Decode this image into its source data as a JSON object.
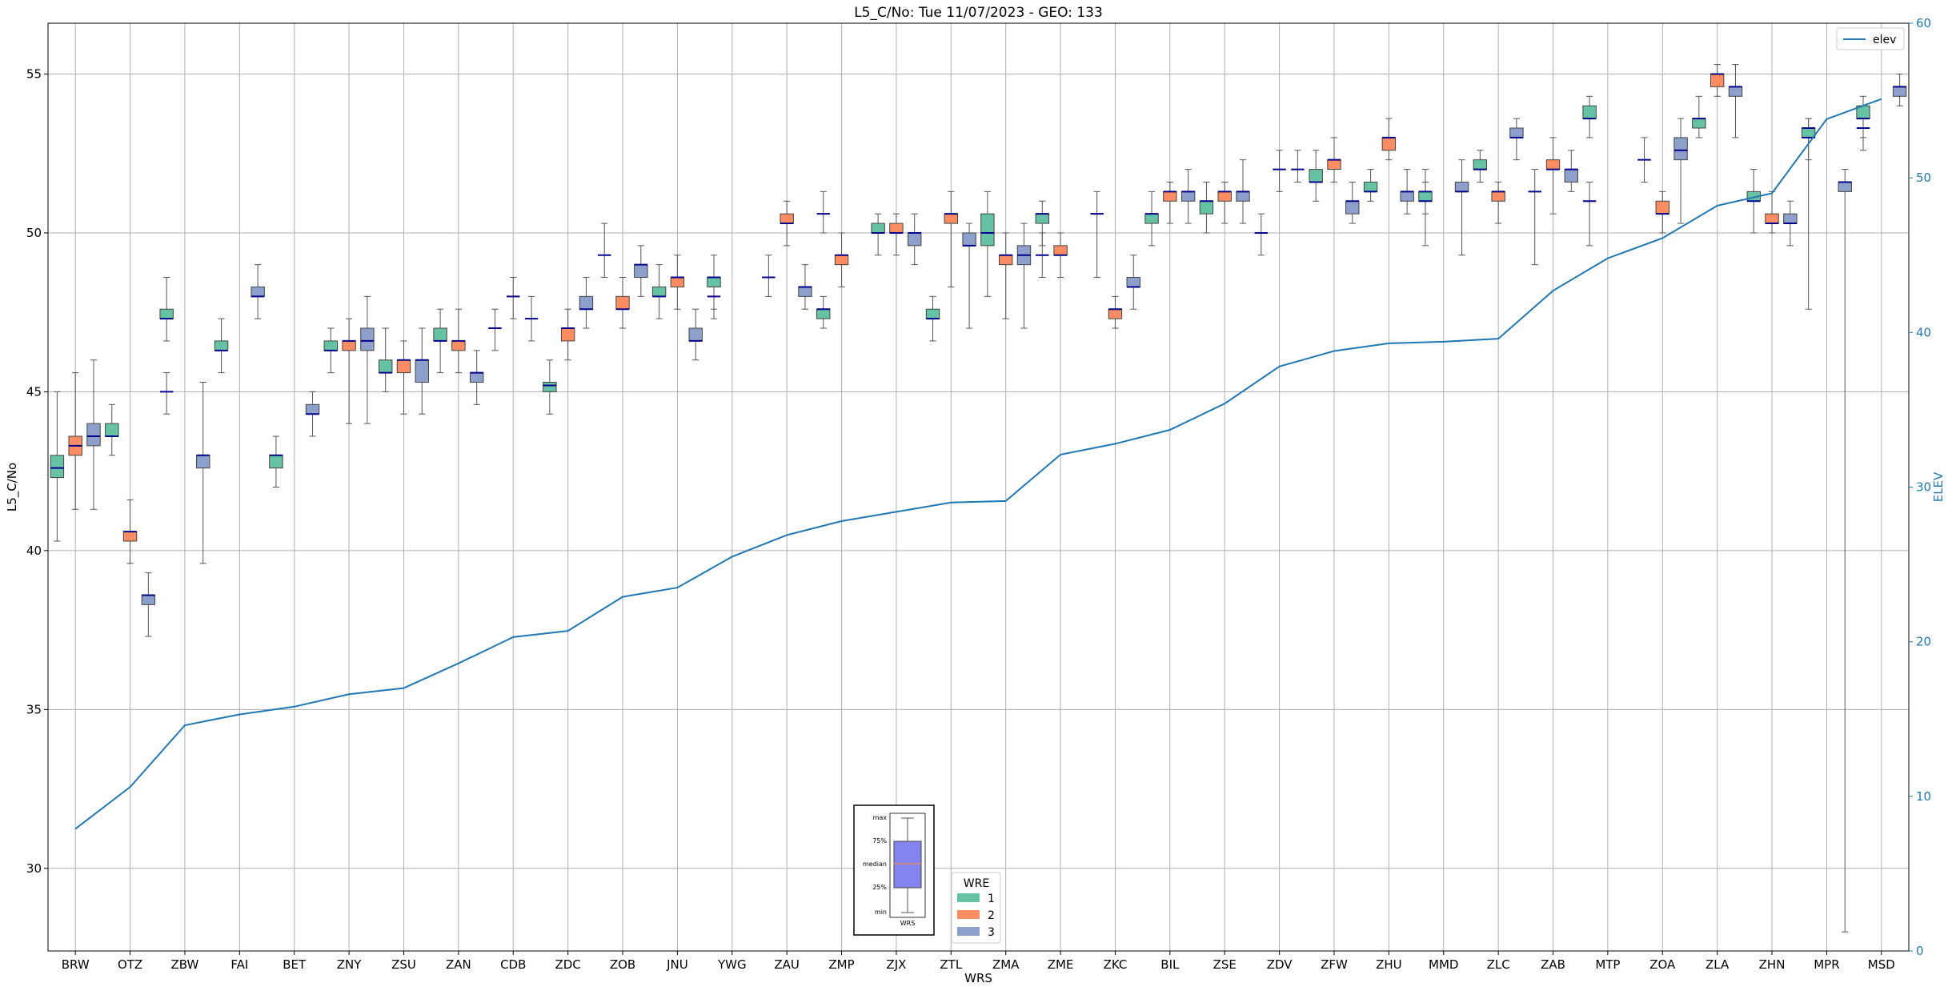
{
  "chart_data": {
    "type": "box",
    "title": "L5_C/No: Tue 11/07/2023 - GEO: 133",
    "xlabel": "WRS",
    "ylabel": "L5_C/No",
    "ylabel_right": "ELEV",
    "ylim": [
      27.4,
      56.6
    ],
    "ylim_right": [
      0,
      60
    ],
    "yticks": [
      30,
      35,
      40,
      45,
      50,
      55
    ],
    "yticks_right": [
      0,
      10,
      20,
      30,
      40,
      50,
      60
    ],
    "grid": true,
    "categories": [
      "BRW",
      "OTZ",
      "ZBW",
      "FAI",
      "BET",
      "ZNY",
      "ZSU",
      "ZAN",
      "CDB",
      "ZDC",
      "ZOB",
      "JNU",
      "YWG",
      "ZAU",
      "ZMP",
      "ZJX",
      "ZTL",
      "ZMA",
      "ZME",
      "ZKC",
      "BIL",
      "ZSE",
      "ZDV",
      "ZFW",
      "ZHU",
      "MMD",
      "ZLC",
      "ZAB",
      "MTP",
      "ZOA",
      "ZLA",
      "ZHN",
      "MPR",
      "MSD"
    ],
    "legend_title": "WRE",
    "series": [
      {
        "name": "1",
        "color": "#66c2a5",
        "boxes": [
          {
            "cat": "BRW",
            "min": 40.3,
            "q1": 42.3,
            "med": 42.6,
            "q3": 43.0,
            "max": 45.0
          },
          {
            "cat": "OTZ",
            "min": 43.0,
            "q1": 43.6,
            "med": 43.6,
            "q3": 44.0,
            "max": 44.6
          },
          {
            "cat": "ZBW",
            "min": 46.6,
            "q1": 47.3,
            "med": 47.3,
            "q3": 47.6,
            "max": 48.6
          },
          {
            "cat": "FAI",
            "min": 45.6,
            "q1": 46.3,
            "med": 46.3,
            "q3": 46.6,
            "max": 47.3
          },
          {
            "cat": "BET",
            "min": 42.0,
            "q1": 42.6,
            "med": 43.0,
            "q3": 43.0,
            "max": 43.6
          },
          {
            "cat": "ZNY",
            "min": 45.6,
            "q1": 46.3,
            "med": 46.3,
            "q3": 46.6,
            "max": 47.0
          },
          {
            "cat": "ZSU",
            "min": 45.0,
            "q1": 45.6,
            "med": 45.6,
            "q3": 46.0,
            "max": 47.0
          },
          {
            "cat": "ZAN",
            "min": 45.6,
            "q1": 46.6,
            "med": 46.6,
            "q3": 47.0,
            "max": 47.6
          },
          {
            "cat": "ZDC",
            "min": 44.3,
            "q1": 45.0,
            "med": 45.2,
            "q3": 45.3,
            "max": 46.0
          },
          {
            "cat": "JNU",
            "min": 47.3,
            "q1": 48.0,
            "med": 48.0,
            "q3": 48.3,
            "max": 49.0
          },
          {
            "cat": "YWG",
            "min": 47.6,
            "q1": 48.3,
            "med": 48.6,
            "q3": 48.6,
            "max": 49.3
          },
          {
            "cat": "ZMP",
            "min": 47.0,
            "q1": 47.3,
            "med": 47.6,
            "q3": 47.6,
            "max": 48.0
          },
          {
            "cat": "ZJX",
            "min": 49.3,
            "q1": 50.0,
            "med": 50.0,
            "q3": 50.3,
            "max": 50.6
          },
          {
            "cat": "ZTL",
            "min": 46.6,
            "q1": 47.3,
            "med": 47.3,
            "q3": 47.6,
            "max": 48.0
          },
          {
            "cat": "ZMA",
            "min": 48.0,
            "q1": 49.6,
            "med": 50.0,
            "q3": 50.6,
            "max": 51.3
          },
          {
            "cat": "ZME",
            "min": 49.6,
            "q1": 50.3,
            "med": 50.6,
            "q3": 50.6,
            "max": 51.0
          },
          {
            "cat": "BIL",
            "min": 49.6,
            "q1": 50.3,
            "med": 50.6,
            "q3": 50.6,
            "max": 51.3
          },
          {
            "cat": "ZSE",
            "min": 50.0,
            "q1": 50.6,
            "med": 51.0,
            "q3": 51.0,
            "max": 51.6
          },
          {
            "cat": "ZFW",
            "min": 51.0,
            "q1": 51.6,
            "med": 51.6,
            "q3": 52.0,
            "max": 52.6
          },
          {
            "cat": "ZHU",
            "min": 51.0,
            "q1": 51.3,
            "med": 51.3,
            "q3": 51.6,
            "max": 52.0
          },
          {
            "cat": "MMD",
            "min": 49.6,
            "q1": 51.0,
            "med": 51.0,
            "q3": 51.3,
            "max": 51.6
          },
          {
            "cat": "ZLC",
            "min": 51.6,
            "q1": 52.0,
            "med": 52.0,
            "q3": 52.3,
            "max": 52.6
          },
          {
            "cat": "MTP",
            "min": 53.0,
            "q1": 53.6,
            "med": 53.6,
            "q3": 54.0,
            "max": 54.3
          },
          {
            "cat": "ZLA",
            "min": 53.0,
            "q1": 53.3,
            "med": 53.6,
            "q3": 53.6,
            "max": 54.3
          },
          {
            "cat": "ZHN",
            "min": 50.0,
            "q1": 51.0,
            "med": 51.0,
            "q3": 51.3,
            "max": 52.0
          },
          {
            "cat": "MPR",
            "min": 52.3,
            "q1": 53.0,
            "med": 53.3,
            "q3": 53.3,
            "max": 53.6
          },
          {
            "cat": "MSD",
            "min": 53.0,
            "q1": 53.6,
            "med": 53.6,
            "q3": 54.0,
            "max": 54.3
          }
        ]
      },
      {
        "name": "2",
        "color": "#fc8d62",
        "boxes": [
          {
            "cat": "BRW",
            "min": 41.3,
            "q1": 43.0,
            "med": 43.3,
            "q3": 43.6,
            "max": 45.6
          },
          {
            "cat": "OTZ",
            "min": 39.6,
            "q1": 40.3,
            "med": 40.6,
            "q3": 40.6,
            "max": 41.6
          },
          {
            "cat": "ZNY",
            "min": 44.0,
            "q1": 46.3,
            "med": 46.6,
            "q3": 46.6,
            "max": 47.3
          },
          {
            "cat": "ZSU",
            "min": 44.3,
            "q1": 45.6,
            "med": 46.0,
            "q3": 46.0,
            "max": 46.6
          },
          {
            "cat": "ZAN",
            "min": 45.6,
            "q1": 46.3,
            "med": 46.6,
            "q3": 46.6,
            "max": 47.6
          },
          {
            "cat": "ZDC",
            "min": 46.0,
            "q1": 46.6,
            "med": 47.0,
            "q3": 47.0,
            "max": 47.6
          },
          {
            "cat": "ZOB",
            "min": 47.0,
            "q1": 47.6,
            "med": 47.6,
            "q3": 48.0,
            "max": 48.6
          },
          {
            "cat": "JNU",
            "min": 47.6,
            "q1": 48.3,
            "med": 48.6,
            "q3": 48.6,
            "max": 49.3
          },
          {
            "cat": "ZAU",
            "min": 49.6,
            "q1": 50.3,
            "med": 50.3,
            "q3": 50.6,
            "max": 51.0
          },
          {
            "cat": "ZMP",
            "min": 48.3,
            "q1": 49.0,
            "med": 49.3,
            "q3": 49.3,
            "max": 50.0
          },
          {
            "cat": "ZJX",
            "min": 49.3,
            "q1": 50.0,
            "med": 50.0,
            "q3": 50.3,
            "max": 50.6
          },
          {
            "cat": "ZTL",
            "min": 48.3,
            "q1": 50.3,
            "med": 50.6,
            "q3": 50.6,
            "max": 51.3
          },
          {
            "cat": "ZMA",
            "min": 47.3,
            "q1": 49.0,
            "med": 49.3,
            "q3": 49.3,
            "max": 50.0
          },
          {
            "cat": "ZME",
            "min": 48.6,
            "q1": 49.3,
            "med": 49.3,
            "q3": 49.6,
            "max": 50.0
          },
          {
            "cat": "ZKC",
            "min": 47.0,
            "q1": 47.3,
            "med": 47.6,
            "q3": 47.6,
            "max": 48.0
          },
          {
            "cat": "BIL",
            "min": 50.3,
            "q1": 51.0,
            "med": 51.3,
            "q3": 51.3,
            "max": 51.6
          },
          {
            "cat": "ZSE",
            "min": 50.3,
            "q1": 51.0,
            "med": 51.3,
            "q3": 51.3,
            "max": 51.6
          },
          {
            "cat": "ZFW",
            "min": 51.6,
            "q1": 52.0,
            "med": 52.3,
            "q3": 52.3,
            "max": 53.0
          },
          {
            "cat": "ZHU",
            "min": 52.3,
            "q1": 52.6,
            "med": 53.0,
            "q3": 53.0,
            "max": 53.6
          },
          {
            "cat": "ZLC",
            "min": 50.3,
            "q1": 51.0,
            "med": 51.3,
            "q3": 51.3,
            "max": 51.6
          },
          {
            "cat": "ZAB",
            "min": 50.6,
            "q1": 52.0,
            "med": 52.0,
            "q3": 52.3,
            "max": 53.0
          },
          {
            "cat": "ZOA",
            "min": 50.0,
            "q1": 50.6,
            "med": 50.6,
            "q3": 51.0,
            "max": 51.3
          },
          {
            "cat": "ZLA",
            "min": 54.3,
            "q1": 54.6,
            "med": 55.0,
            "q3": 55.0,
            "max": 55.3
          },
          {
            "cat": "ZHN",
            "min": 50.0,
            "q1": 50.3,
            "med": 50.3,
            "q3": 50.6,
            "max": 51.3
          }
        ]
      },
      {
        "name": "3",
        "color": "#8da0cb",
        "boxes": [
          {
            "cat": "BRW",
            "min": 41.3,
            "q1": 43.3,
            "med": 43.6,
            "q3": 44.0,
            "max": 46.0
          },
          {
            "cat": "OTZ",
            "min": 37.3,
            "q1": 38.3,
            "med": 38.6,
            "q3": 38.6,
            "max": 39.3
          },
          {
            "cat": "ZBW",
            "min": 39.6,
            "q1": 42.6,
            "med": 43.0,
            "q3": 43.0,
            "max": 45.3
          },
          {
            "cat": "FAI",
            "min": 47.3,
            "q1": 48.0,
            "med": 48.0,
            "q3": 48.3,
            "max": 49.0
          },
          {
            "cat": "BET",
            "min": 43.6,
            "q1": 44.3,
            "med": 44.3,
            "q3": 44.6,
            "max": 45.0
          },
          {
            "cat": "ZNY",
            "min": 44.0,
            "q1": 46.3,
            "med": 46.6,
            "q3": 47.0,
            "max": 48.0
          },
          {
            "cat": "ZSU",
            "min": 44.3,
            "q1": 45.3,
            "med": 46.0,
            "q3": 46.0,
            "max": 47.0
          },
          {
            "cat": "ZAN",
            "min": 44.6,
            "q1": 45.3,
            "med": 45.6,
            "q3": 45.6,
            "max": 46.3
          },
          {
            "cat": "ZDC",
            "min": 47.0,
            "q1": 47.6,
            "med": 47.6,
            "q3": 48.0,
            "max": 48.6
          },
          {
            "cat": "ZOB",
            "min": 48.0,
            "q1": 48.6,
            "med": 49.0,
            "q3": 49.0,
            "max": 49.6
          },
          {
            "cat": "JNU",
            "min": 46.0,
            "q1": 46.6,
            "med": 46.6,
            "q3": 47.0,
            "max": 47.6
          },
          {
            "cat": "ZAU",
            "min": 47.6,
            "q1": 48.0,
            "med": 48.3,
            "q3": 48.3,
            "max": 49.0
          },
          {
            "cat": "ZJX",
            "min": 49.0,
            "q1": 49.6,
            "med": 50.0,
            "q3": 50.0,
            "max": 50.6
          },
          {
            "cat": "ZTL",
            "min": 47.0,
            "q1": 49.6,
            "med": 49.6,
            "q3": 50.0,
            "max": 50.3
          },
          {
            "cat": "ZMA",
            "min": 47.0,
            "q1": 49.0,
            "med": 49.3,
            "q3": 49.6,
            "max": 50.3
          },
          {
            "cat": "ZKC",
            "min": 47.6,
            "q1": 48.3,
            "med": 48.3,
            "q3": 48.6,
            "max": 49.3
          },
          {
            "cat": "BIL",
            "min": 50.3,
            "q1": 51.0,
            "med": 51.3,
            "q3": 51.3,
            "max": 52.0
          },
          {
            "cat": "ZSE",
            "min": 50.3,
            "q1": 51.0,
            "med": 51.3,
            "q3": 51.3,
            "max": 52.3
          },
          {
            "cat": "ZFW",
            "min": 50.3,
            "q1": 50.6,
            "med": 51.0,
            "q3": 51.0,
            "max": 51.6
          },
          {
            "cat": "ZHU",
            "min": 50.6,
            "q1": 51.0,
            "med": 51.3,
            "q3": 51.3,
            "max": 52.0
          },
          {
            "cat": "MMD",
            "min": 49.3,
            "q1": 51.3,
            "med": 51.3,
            "q3": 51.6,
            "max": 52.3
          },
          {
            "cat": "ZLC",
            "min": 52.3,
            "q1": 53.0,
            "med": 53.0,
            "q3": 53.3,
            "max": 53.6
          },
          {
            "cat": "ZAB",
            "min": 51.3,
            "q1": 51.6,
            "med": 52.0,
            "q3": 52.0,
            "max": 52.6
          },
          {
            "cat": "ZOA",
            "min": 50.3,
            "q1": 52.3,
            "med": 52.6,
            "q3": 53.0,
            "max": 53.6
          },
          {
            "cat": "ZLA",
            "min": 53.0,
            "q1": 54.3,
            "med": 54.6,
            "q3": 54.6,
            "max": 55.3
          },
          {
            "cat": "ZHN",
            "min": 49.6,
            "q1": 50.3,
            "med": 50.3,
            "q3": 50.6,
            "max": 51.0
          },
          {
            "cat": "MPR",
            "min": 28.0,
            "q1": 51.3,
            "med": 51.6,
            "q3": 51.6,
            "max": 52.0
          },
          {
            "cat": "MSD",
            "min": 54.0,
            "q1": 54.3,
            "med": 54.6,
            "q3": 54.6,
            "max": 55.0
          }
        ]
      }
    ],
    "flat_markers": [
      {
        "cat": "ZBW",
        "value": 45.0,
        "min": 44.3,
        "max": 45.6
      },
      {
        "cat": "ZOB",
        "value": 49.3,
        "min": 48.6,
        "max": 50.3
      },
      {
        "cat": "CDB",
        "value": 47.0,
        "min": 46.3,
        "max": 47.6
      },
      {
        "cat": "CDB",
        "value": 48.0,
        "min": 47.3,
        "max": 48.6
      },
      {
        "cat": "CDB",
        "value": 47.3,
        "min": 46.6,
        "max": 48.0
      },
      {
        "cat": "YWG",
        "value": 48.0,
        "min": 47.3,
        "max": 48.6
      },
      {
        "cat": "ZAU",
        "value": 48.6,
        "min": 48.0,
        "max": 49.3
      },
      {
        "cat": "ZMP",
        "value": 50.6,
        "min": 50.0,
        "max": 51.3
      },
      {
        "cat": "ZME",
        "value": 49.3,
        "min": 48.6,
        "max": 50.0
      },
      {
        "cat": "ZKC",
        "value": 50.6,
        "min": 48.6,
        "max": 51.3
      },
      {
        "cat": "ZDV",
        "value": 50.0,
        "min": 49.3,
        "max": 50.6
      },
      {
        "cat": "ZDV",
        "value": 52.0,
        "min": 51.3,
        "max": 52.6
      },
      {
        "cat": "ZDV",
        "value": 52.0,
        "min": 51.6,
        "max": 52.6
      },
      {
        "cat": "MMD",
        "value": 51.3,
        "min": 50.6,
        "max": 52.0
      },
      {
        "cat": "ZAB",
        "value": 51.3,
        "min": 49.0,
        "max": 52.0
      },
      {
        "cat": "MTP",
        "value": 51.0,
        "min": 49.6,
        "max": 51.6
      },
      {
        "cat": "ZOA",
        "value": 52.3,
        "min": 51.6,
        "max": 53.0
      },
      {
        "cat": "MPR",
        "value": 53.0,
        "min": 47.6,
        "max": 53.6
      },
      {
        "cat": "MSD",
        "value": 53.3,
        "min": 52.6,
        "max": 54.0
      }
    ],
    "elev_series": {
      "name": "elev",
      "color": "#1f77b4",
      "values": [
        7.9,
        10.6,
        14.6,
        15.3,
        15.8,
        16.6,
        17.0,
        18.6,
        20.3,
        20.7,
        22.9,
        23.5,
        25.5,
        26.9,
        27.8,
        28.4,
        29.0,
        29.1,
        32.1,
        32.8,
        33.7,
        35.4,
        37.8,
        38.8,
        39.3,
        39.4,
        39.6,
        42.7,
        44.8,
        46.1,
        48.2,
        49.0,
        53.8,
        55.1
      ]
    },
    "legend": {
      "entries": [
        "elev"
      ],
      "location": "upper right"
    },
    "inset_labels": [
      "max",
      "75%",
      "median",
      "25%",
      "min",
      "WRS"
    ]
  }
}
